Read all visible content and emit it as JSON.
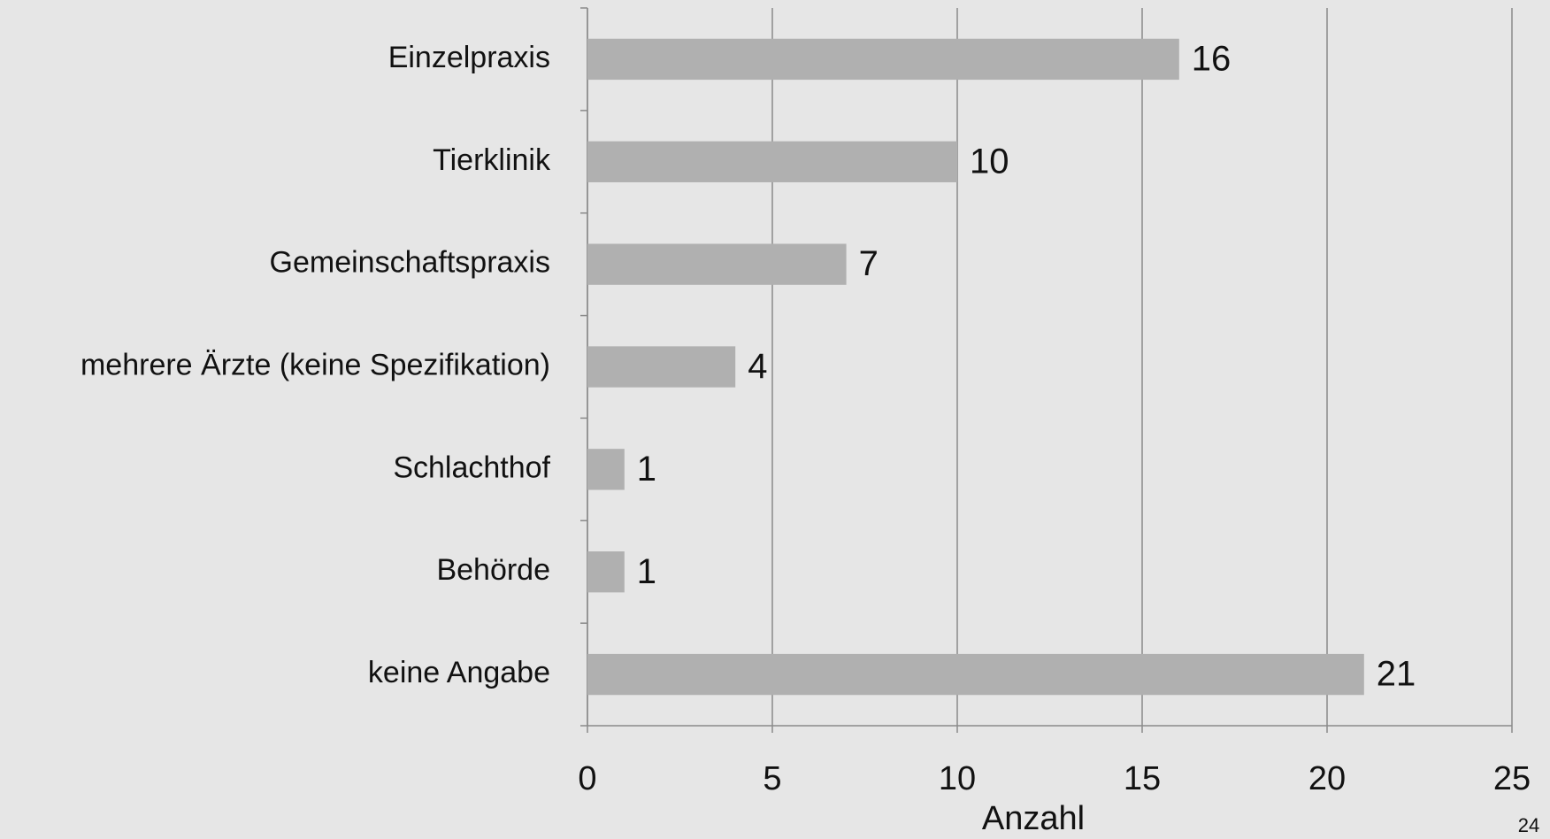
{
  "chart_data": {
    "type": "bar",
    "orientation": "horizontal",
    "categories": [
      "Einzelpraxis",
      "Tierklinik",
      "Gemeinschaftspraxis",
      "mehrere Ärzte (keine Spezifikation)",
      "Schlachthof",
      "Behörde",
      "keine Angabe"
    ],
    "values": [
      16,
      10,
      7,
      4,
      1,
      1,
      21
    ],
    "color": "#b0b0b0",
    "xlabel": "Anzahl",
    "xlim": [
      0,
      25
    ],
    "xticks": [
      0,
      5,
      10,
      15,
      20,
      25
    ],
    "grid": true
  },
  "page_number": "24"
}
